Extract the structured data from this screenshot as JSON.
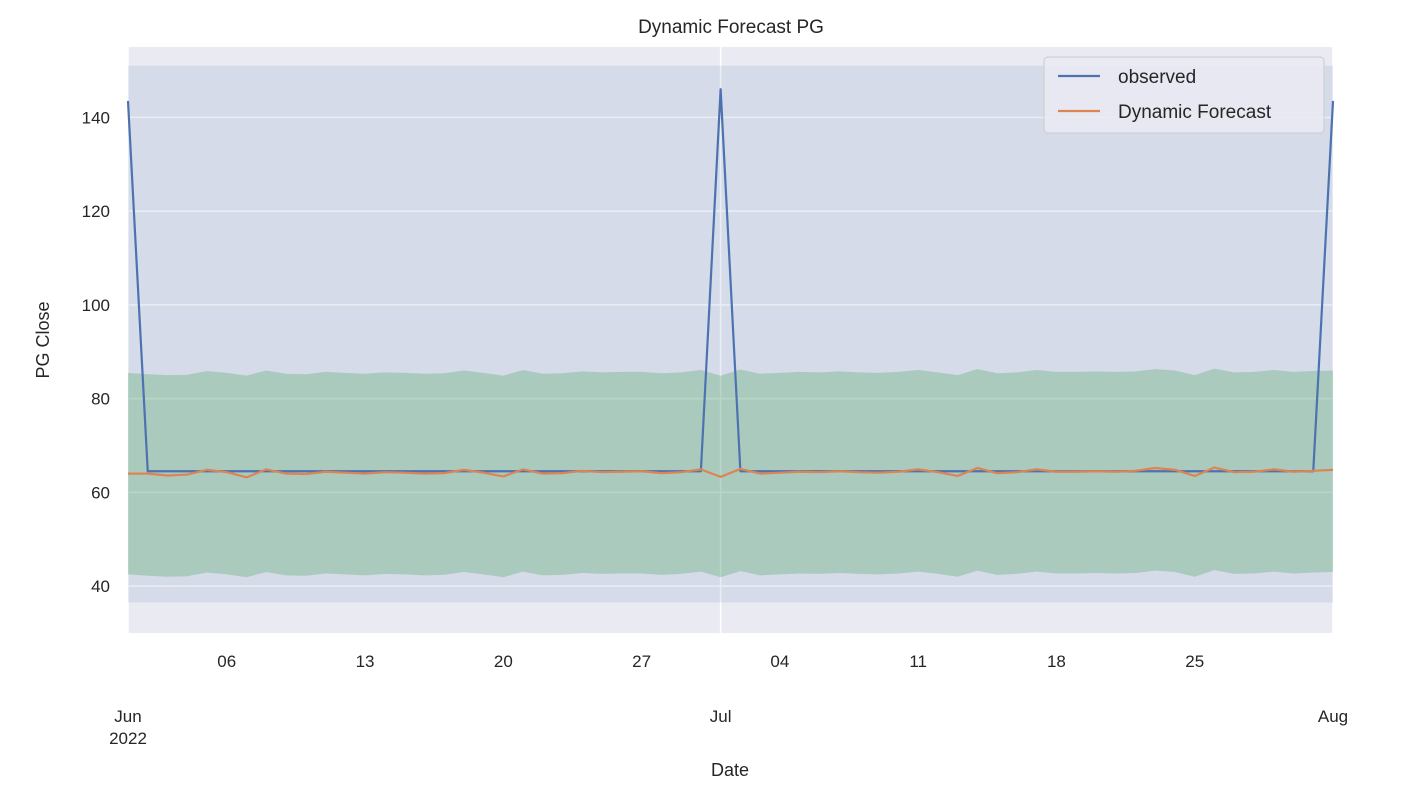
{
  "chart_data": {
    "type": "line",
    "title": "Dynamic Forecast PG",
    "xlabel": "Date",
    "ylabel": "PG Close",
    "x_range": [
      "2022-06-01",
      "2022-08-01"
    ],
    "ylim": [
      30,
      155
    ],
    "grid": true,
    "legend_position": "top-right",
    "x_minor_ticks": [
      {
        "date": "2022-06-06",
        "label": "06"
      },
      {
        "date": "2022-06-13",
        "label": "13"
      },
      {
        "date": "2022-06-20",
        "label": "20"
      },
      {
        "date": "2022-06-27",
        "label": "27"
      },
      {
        "date": "2022-07-04",
        "label": "04"
      },
      {
        "date": "2022-07-11",
        "label": "11"
      },
      {
        "date": "2022-07-18",
        "label": "18"
      },
      {
        "date": "2022-07-25",
        "label": "25"
      }
    ],
    "x_major_ticks": [
      {
        "date": "2022-06-01",
        "label": "Jun",
        "sublabel": "2022"
      },
      {
        "date": "2022-07-01",
        "label": "Jul",
        "sublabel": ""
      },
      {
        "date": "2022-08-01",
        "label": "Aug",
        "sublabel": ""
      }
    ],
    "y_ticks": [
      40,
      60,
      80,
      100,
      120,
      140
    ],
    "series": [
      {
        "name": "observed",
        "color": "#4c72b0",
        "points": [
          [
            "2022-06-01",
            143.5
          ],
          [
            "2022-06-02",
            64.5
          ],
          [
            "2022-06-15",
            64.5
          ],
          [
            "2022-06-30",
            64.5
          ],
          [
            "2022-07-01",
            146.0
          ],
          [
            "2022-07-02",
            64.5
          ],
          [
            "2022-07-15",
            64.5
          ],
          [
            "2022-07-31",
            64.5
          ],
          [
            "2022-08-01",
            143.5
          ]
        ]
      },
      {
        "name": "Dynamic Forecast",
        "color": "#dd8452",
        "points": [
          [
            "2022-06-01",
            64.0
          ],
          [
            "2022-06-02",
            64.0
          ],
          [
            "2022-06-03",
            63.6
          ],
          [
            "2022-06-04",
            63.8
          ],
          [
            "2022-06-05",
            64.8
          ],
          [
            "2022-06-06",
            64.3
          ],
          [
            "2022-06-07",
            63.2
          ],
          [
            "2022-06-08",
            64.9
          ],
          [
            "2022-06-09",
            64.0
          ],
          [
            "2022-06-10",
            63.9
          ],
          [
            "2022-06-11",
            64.4
          ],
          [
            "2022-06-12",
            64.2
          ],
          [
            "2022-06-13",
            64.0
          ],
          [
            "2022-06-14",
            64.3
          ],
          [
            "2022-06-15",
            64.2
          ],
          [
            "2022-06-16",
            64.0
          ],
          [
            "2022-06-17",
            64.1
          ],
          [
            "2022-06-18",
            64.8
          ],
          [
            "2022-06-19",
            64.2
          ],
          [
            "2022-06-20",
            63.4
          ],
          [
            "2022-06-21",
            64.9
          ],
          [
            "2022-06-22",
            64.0
          ],
          [
            "2022-06-23",
            64.1
          ],
          [
            "2022-06-24",
            64.6
          ],
          [
            "2022-06-25",
            64.3
          ],
          [
            "2022-06-26",
            64.4
          ],
          [
            "2022-06-27",
            64.5
          ],
          [
            "2022-06-28",
            64.1
          ],
          [
            "2022-06-29",
            64.3
          ],
          [
            "2022-06-30",
            64.9
          ],
          [
            "2022-07-01",
            63.3
          ],
          [
            "2022-07-02",
            65.0
          ],
          [
            "2022-07-03",
            64.0
          ],
          [
            "2022-07-04",
            64.2
          ],
          [
            "2022-07-05",
            64.4
          ],
          [
            "2022-07-06",
            64.3
          ],
          [
            "2022-07-07",
            64.5
          ],
          [
            "2022-07-08",
            64.3
          ],
          [
            "2022-07-09",
            64.2
          ],
          [
            "2022-07-10",
            64.4
          ],
          [
            "2022-07-11",
            64.9
          ],
          [
            "2022-07-12",
            64.3
          ],
          [
            "2022-07-13",
            63.5
          ],
          [
            "2022-07-14",
            65.2
          ],
          [
            "2022-07-15",
            64.1
          ],
          [
            "2022-07-16",
            64.3
          ],
          [
            "2022-07-17",
            64.9
          ],
          [
            "2022-07-18",
            64.4
          ],
          [
            "2022-07-19",
            64.4
          ],
          [
            "2022-07-20",
            64.5
          ],
          [
            "2022-07-21",
            64.4
          ],
          [
            "2022-07-22",
            64.6
          ],
          [
            "2022-07-23",
            65.2
          ],
          [
            "2022-07-24",
            64.8
          ],
          [
            "2022-07-25",
            63.5
          ],
          [
            "2022-07-26",
            65.3
          ],
          [
            "2022-07-27",
            64.3
          ],
          [
            "2022-07-28",
            64.4
          ],
          [
            "2022-07-29",
            64.9
          ],
          [
            "2022-07-30",
            64.4
          ],
          [
            "2022-07-31",
            64.6
          ],
          [
            "2022-08-01",
            64.8
          ]
        ]
      }
    ],
    "bands": [
      {
        "color": "#4c72b0",
        "opacity": 0.12,
        "lower": 36.5,
        "upper": 151
      },
      {
        "color": "#55a868",
        "opacity": 0.33,
        "lower_base": 42.5,
        "upper_base": 85.5,
        "wiggle": [
          0,
          -0.3,
          -0.5,
          -0.4,
          0.4,
          0,
          -0.6,
          0.5,
          -0.2,
          -0.3,
          0.2,
          0,
          -0.2,
          0.1,
          0,
          -0.2,
          -0.1,
          0.5,
          0,
          -0.6,
          0.6,
          -0.2,
          -0.1,
          0.3,
          0.1,
          0.2,
          0.2,
          -0.1,
          0.1,
          0.6,
          -0.6,
          0.7,
          -0.2,
          0,
          0.2,
          0.1,
          0.3,
          0.1,
          0,
          0.2,
          0.6,
          0.1,
          -0.5,
          0.8,
          -0.1,
          0.1,
          0.6,
          0.2,
          0.2,
          0.3,
          0.2,
          0.3,
          0.8,
          0.5,
          -0.5,
          0.9,
          0.1,
          0.2,
          0.6,
          0.2,
          0.4,
          0.5
        ]
      }
    ]
  }
}
